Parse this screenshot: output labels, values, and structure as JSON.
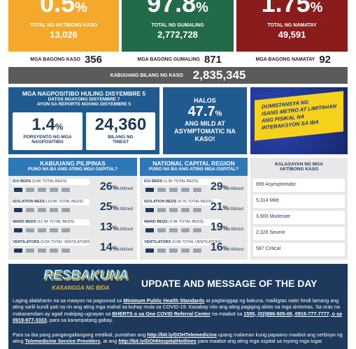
{
  "summary": {
    "active": {
      "rate": "0.5",
      "unit": "%",
      "label": "TOTAL NG AKTIBONG KASO",
      "count": "13,026"
    },
    "recovered": {
      "rate": "97.8",
      "unit": "%",
      "label": "TOTAL NG GUMALING",
      "count": "2,772,728"
    },
    "deaths": {
      "rate": "1.75",
      "unit": "%",
      "label": "TOTAL NG NAMATAY",
      "count": "49,591"
    }
  },
  "new": [
    {
      "label": "MGA BAGONG KASO",
      "value": "356"
    },
    {
      "label": "MGA BAGONG GUMALING",
      "value": "871"
    },
    {
      "label": "MGA BAGONG NAMATAY",
      "value": "92"
    }
  ],
  "total": {
    "label": "KABUUANG BILANG NG KASO",
    "value": "2,835,345"
  },
  "testing": {
    "title": "MGA NAGPOSITIBO HULING DISYEMBRE 5",
    "subtitle1": "DATOS NGAYONG DISYEMBRE 7",
    "subtitle2": "AYON SA REPORTS NOONG DISYEMBRE 5",
    "positivity": {
      "value": "1.4",
      "unit": "%",
      "label": "PORSYENTO NG MGA NAGPOSITIBO"
    },
    "tested": {
      "value": "24,360",
      "label": "BILANG NG TINEST"
    }
  },
  "mild": {
    "pre": "HALOS",
    "value": "47.7",
    "unit": "%",
    "text": "ANG MILD AT ASYMPTOMATIC NA KASO!"
  },
  "banner": {
    "lines": [
      "DUMISTANSYA NG",
      "ISANG METRO AT LIMITAHAN",
      "ANG PISIKAL NA",
      "INTERAKSYON SA IBA"
    ]
  },
  "hospitals": [
    {
      "title": "KABUUANG PILIPINAS",
      "subtitle": "PUNO NA BA ANG ATING MGA OSPITAL?",
      "rows": [
        {
          "label": "ICU BEDS",
          "total": "(3.6K TOTAL BEDS)",
          "value": "26",
          "unit": "%",
          "note": "Utilized"
        },
        {
          "label": "ISOLATION BEDS",
          "total": "(19.8K TOTAL BEDS)",
          "value": "25",
          "unit": "%",
          "note": "Utilized"
        },
        {
          "label": "WARD BEDS",
          "total": "(12.9K TOTAL BEDS)",
          "value": "13",
          "unit": "%",
          "note": "Utilized"
        },
        {
          "label": "VENTILATORS",
          "total": "(3.0K TOTAL VENTILATORS)",
          "value": "14",
          "unit": "%",
          "note": "Utilized"
        }
      ]
    },
    {
      "title": "NATIONAL CAPITAL REGION",
      "subtitle": "PUNO NA BA ANG ATING MGA OSPITAL?",
      "rows": [
        {
          "label": "ICU BEDS",
          "total": "(1.3K TOTAL BEDS)",
          "value": "29",
          "unit": "%",
          "note": "Utilized"
        },
        {
          "label": "ISOLATION BEDS",
          "total": "(4.7K TOTAL BEDS)",
          "value": "21",
          "unit": "%",
          "note": "Utilized"
        },
        {
          "label": "WARD BEDS",
          "total": "(3.9K TOTAL BEDS)",
          "value": "19",
          "unit": "%",
          "note": "Utilized"
        },
        {
          "label": "VENTILATORS",
          "total": "(0.9K TOTAL VENTILATORS)",
          "value": "16",
          "unit": "%",
          "note": "Utilized"
        }
      ]
    }
  ],
  "status": {
    "title": "KALAGAYAN NG MGA AKTIBONG KASO",
    "items": [
      "899 Asymptomatic",
      "5,314 Mild",
      "3,900 Moderate",
      "2,326 Severe",
      "587 Critical"
    ]
  },
  "update": {
    "logo": "RESBAKUNA",
    "logo_sub": "KASANGGA NG BIDA",
    "title": "UPDATE AND MESSAGE OF THE DAY",
    "p1": [
      "Laging alalahanin na sa maayos na pagsunod sa ",
      "Minimum Public Health Standards",
      " at pagtanggap ng bakuna, mailiigtas natin hindi lamang ang ating sarili kundi pati na rin ang ating mga mahal sa buhay mula sa COVID-19. Kasabay nito ang ating pagiging alisto sa mga sintomas. Sa oras na makaramdam ay agad makipag-ugnayan sa ",
      "BHERTS o sa One COVID Referral Center",
      " na maabot sa ",
      "1555, (02)886-505-00, 0915-777-7777, o sa 0919-977-3333",
      ", para sa karampatang gabay."
    ],
    "p2": [
      "Para sa iba pang pangangailangang medikal, puntahan ang ",
      "http://bit.ly/DOHTelemedicine",
      " upang malaman kung papaano maabot ang serbisyo ng ating ",
      "Telemedicine Service Providers",
      ", at ang ",
      "http://bit.ly/DOHHospitalHotlines",
      " para maabot ang ating mga ospital sa inyong mga lugar."
    ]
  }
}
